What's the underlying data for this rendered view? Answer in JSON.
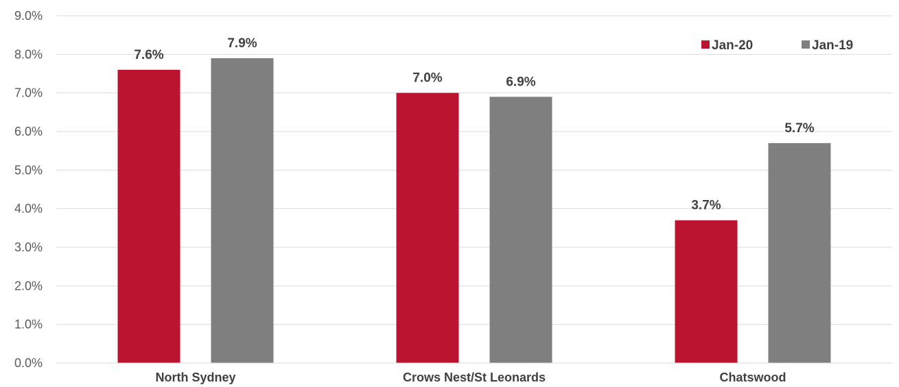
{
  "chart_data": {
    "type": "bar",
    "categories": [
      "North Sydney",
      "Crows Nest/St Leonards",
      "Chatswood"
    ],
    "series": [
      {
        "name": "Jan-20",
        "values": [
          7.6,
          7.0,
          3.7
        ],
        "color": "#BA1431"
      },
      {
        "name": "Jan-19",
        "values": [
          7.9,
          6.9,
          5.7
        ],
        "color": "#7F7F7F"
      }
    ],
    "data_labels": [
      [
        "7.6%",
        "7.0%",
        "3.7%"
      ],
      [
        "7.9%",
        "6.9%",
        "5.7%"
      ]
    ],
    "y_ticks": [
      "0.0%",
      "1.0%",
      "2.0%",
      "3.0%",
      "4.0%",
      "5.0%",
      "6.0%",
      "7.0%",
      "8.0%",
      "9.0%"
    ],
    "ylim": [
      0,
      9
    ],
    "grid": true,
    "legend_position": "top-right",
    "title": "",
    "xlabel": "",
    "ylabel": ""
  }
}
